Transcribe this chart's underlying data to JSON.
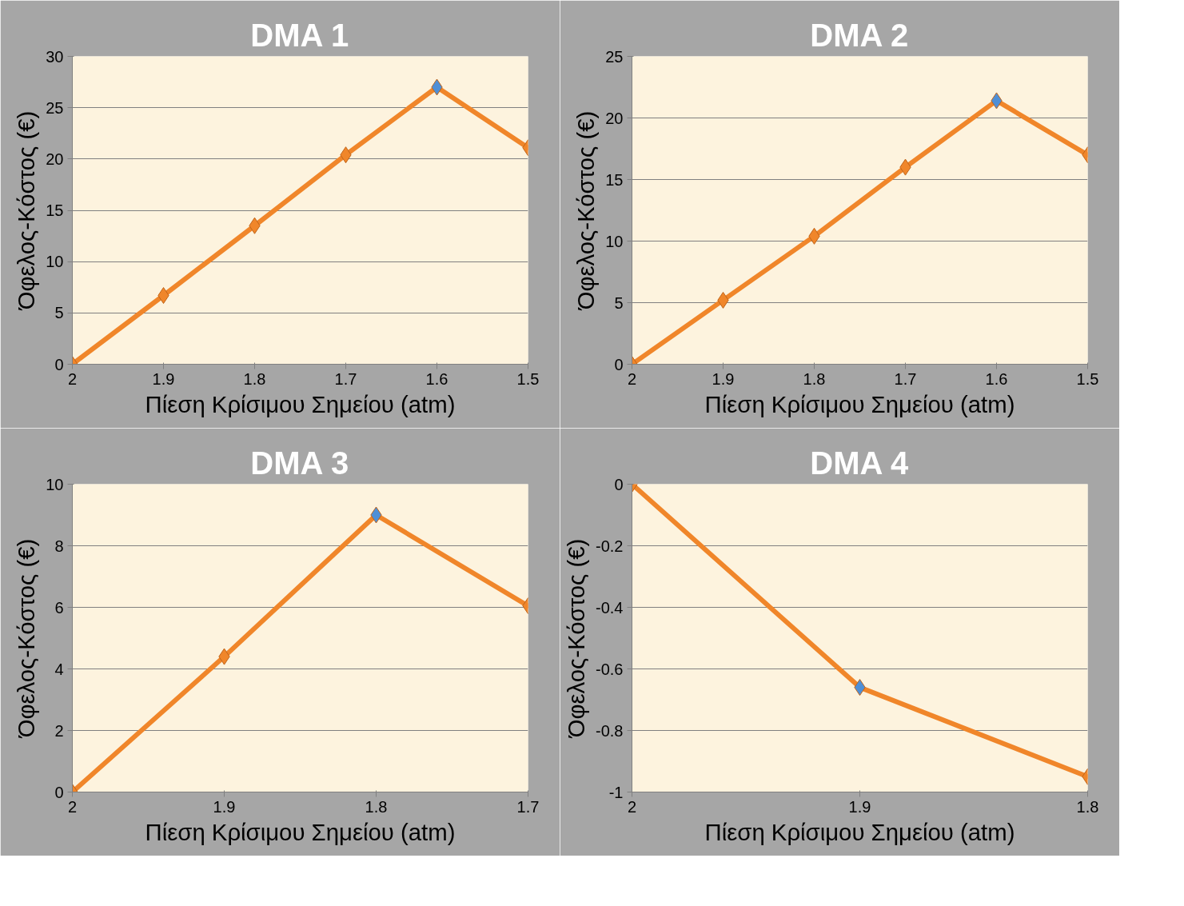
{
  "chart_data": [
    {
      "type": "line",
      "title": "DMA 1",
      "xlabel": "Πίεση Κρίσιμου Σημείου (atm)",
      "ylabel": "Όφελος-Κόστος (€)",
      "x": [
        2,
        1.9,
        1.8,
        1.7,
        1.6,
        1.5
      ],
      "xlim": [
        2,
        1.5
      ],
      "xticks": [
        2,
        1.9,
        1.8,
        1.7,
        1.6,
        1.5
      ],
      "ylim": [
        0,
        30
      ],
      "yticks": [
        0,
        5,
        10,
        15,
        20,
        25,
        30
      ],
      "grid": "y",
      "marker": "diamond",
      "series": [
        {
          "color": "#f0862a",
          "values": [
            0,
            6.7,
            13.5,
            20.4,
            27.0,
            21.1
          ],
          "colors": [
            "#f0862a",
            "#f0862a",
            "#f0862a",
            "#f0862a",
            "#4f8fd6",
            "#f0862a"
          ]
        }
      ]
    },
    {
      "type": "line",
      "title": "DMA 2",
      "xlabel": "Πίεση Κρίσιμου Σημείου (atm)",
      "ylabel": "Όφελος-Κόστος (€)",
      "x": [
        2,
        1.9,
        1.8,
        1.7,
        1.6,
        1.5
      ],
      "xlim": [
        2,
        1.5
      ],
      "xticks": [
        2,
        1.9,
        1.8,
        1.7,
        1.6,
        1.5
      ],
      "ylim": [
        0,
        25
      ],
      "yticks": [
        0,
        5,
        10,
        15,
        20,
        25
      ],
      "grid": "y",
      "marker": "diamond",
      "series": [
        {
          "color": "#f0862a",
          "values": [
            0,
            5.2,
            10.4,
            16.0,
            21.4,
            17.0
          ],
          "colors": [
            "#f0862a",
            "#f0862a",
            "#f0862a",
            "#f0862a",
            "#4f8fd6",
            "#f0862a"
          ]
        }
      ]
    },
    {
      "type": "line",
      "title": "DMA 3",
      "xlabel": "Πίεση Κρίσιμου Σημείου (atm)",
      "ylabel": "Όφελος-Κόστος (€)",
      "x": [
        2,
        1.9,
        1.8,
        1.7
      ],
      "xlim": [
        2,
        1.7
      ],
      "xticks": [
        2,
        1.9,
        1.8,
        1.7
      ],
      "ylim": [
        0,
        10
      ],
      "yticks": [
        0,
        2,
        4,
        6,
        8,
        10
      ],
      "grid": "y",
      "marker": "diamond",
      "series": [
        {
          "color": "#f0862a",
          "values": [
            0,
            4.4,
            9.0,
            6.05
          ],
          "colors": [
            "#f0862a",
            "#f0862a",
            "#4f8fd6",
            "#f0862a"
          ]
        }
      ]
    },
    {
      "type": "line",
      "title": "DMA 4",
      "xlabel": "Πίεση Κρίσιμου Σημείου (atm)",
      "ylabel": "Όφελος-Κόστος (€)",
      "x": [
        2,
        1.9,
        1.8
      ],
      "xlim": [
        2,
        1.8
      ],
      "xticks": [
        2,
        1.9,
        1.8
      ],
      "ylim": [
        -1,
        0
      ],
      "yticks": [
        -1,
        -0.8,
        -0.6,
        -0.4,
        -0.2,
        0
      ],
      "grid": "y",
      "marker": "diamond",
      "series": [
        {
          "color": "#f0862a",
          "values": [
            0,
            -0.66,
            -0.95
          ],
          "colors": [
            "#f0862a",
            "#4f8fd6",
            "#f0862a"
          ]
        }
      ]
    }
  ]
}
